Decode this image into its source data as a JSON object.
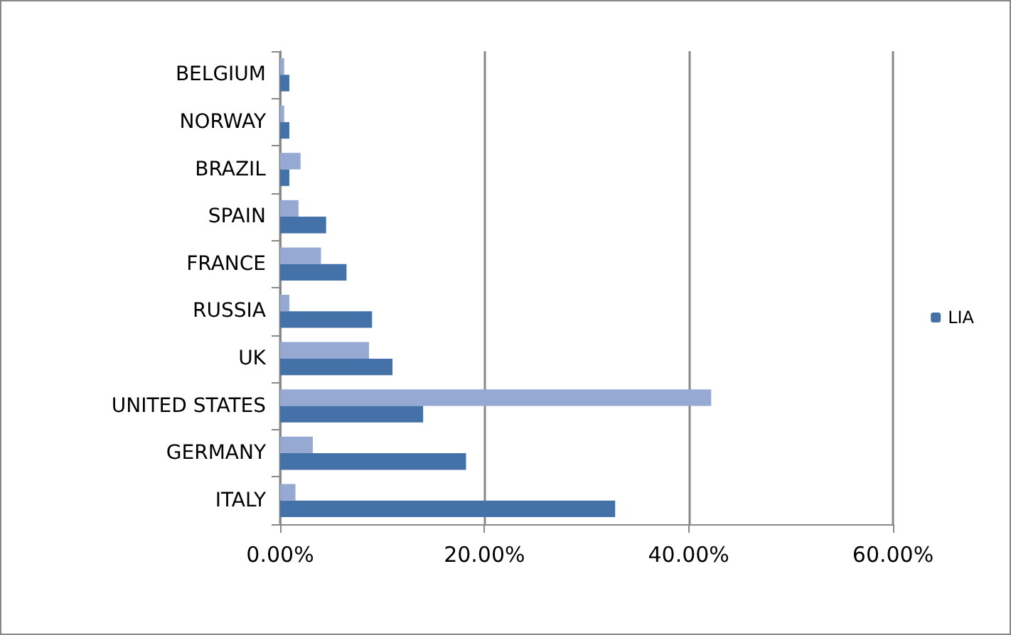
{
  "chart_data": {
    "type": "bar",
    "orientation": "horizontal",
    "categories": [
      "BELGIUM",
      "NORWAY",
      "BRAZIL",
      "SPAIN",
      "FRANCE",
      "RUSSIA",
      "UK",
      "UNITED STATES",
      "GERMANY",
      "ITALY"
    ],
    "series": [
      {
        "color": "#95a9d3",
        "values": [
          0.4,
          0.4,
          2.0,
          1.8,
          4.0,
          0.9,
          8.7,
          42.2,
          3.2,
          1.5
        ]
      },
      {
        "name": "LIA",
        "color": "#4471a8",
        "values": [
          0.9,
          0.9,
          0.9,
          4.5,
          6.5,
          9.0,
          11.0,
          14.0,
          18.2,
          32.8
        ]
      }
    ],
    "xlim": [
      0,
      60
    ],
    "xticks": [
      {
        "value": 0,
        "label": "0.00%"
      },
      {
        "value": 20,
        "label": "20.00%"
      },
      {
        "value": 40,
        "label": "40.00%"
      },
      {
        "value": 60,
        "label": "60.00%"
      }
    ],
    "grid": "x",
    "legend": "right"
  }
}
